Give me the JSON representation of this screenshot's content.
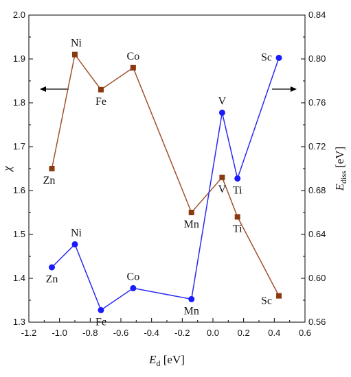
{
  "chart_data": {
    "type": "line",
    "xlabel": {
      "main": "E",
      "sub": "d",
      "unit": " [eV]"
    },
    "ylabel_left": "χ",
    "ylabel_right": {
      "main": "E",
      "sub": "diss",
      "unit": " [eV]"
    },
    "xlim": [
      -1.2,
      0.6
    ],
    "xticks": [
      "-1.2",
      "-1.0",
      "-0.8",
      "-0.6",
      "-0.4",
      "-0.2",
      "0.0",
      "0.2",
      "0.4",
      "0.6"
    ],
    "ylim_left": [
      1.3,
      2.0
    ],
    "yticks_left": [
      "1.3",
      "1.4",
      "1.5",
      "1.6",
      "1.7",
      "1.8",
      "1.9",
      "2.0"
    ],
    "ylim_right": [
      0.56,
      0.84
    ],
    "yticks_right": [
      "0.56",
      "0.60",
      "0.64",
      "0.68",
      "0.72",
      "0.76",
      "0.80",
      "0.84"
    ],
    "series": [
      {
        "axis": "left",
        "color": "#a0522d",
        "marker_color": "#8b3a10",
        "marker": "square",
        "x": [
          -1.05,
          -0.9,
          -0.73,
          -0.52,
          -0.14,
          0.06,
          0.16,
          0.43
        ],
        "y": [
          1.65,
          1.91,
          1.83,
          1.88,
          1.55,
          1.63,
          1.54,
          1.36
        ],
        "labels": [
          "Zn",
          "Ni",
          "Fe",
          "Co",
          "Mn",
          "V",
          "Ti",
          "Sc"
        ]
      },
      {
        "axis": "right",
        "color": "#2a2af0",
        "marker_color": "#1a1aff",
        "marker": "circle",
        "x": [
          -1.05,
          -0.9,
          -0.73,
          -0.52,
          -0.14,
          0.06,
          0.16,
          0.43
        ],
        "y": [
          0.61,
          0.631,
          0.571,
          0.591,
          0.581,
          0.751,
          0.691,
          0.801
        ],
        "labels": [
          "Zn",
          "Ni",
          "Fe",
          "Co",
          "Mn",
          "V",
          "Ti",
          "Sc"
        ]
      }
    ]
  }
}
